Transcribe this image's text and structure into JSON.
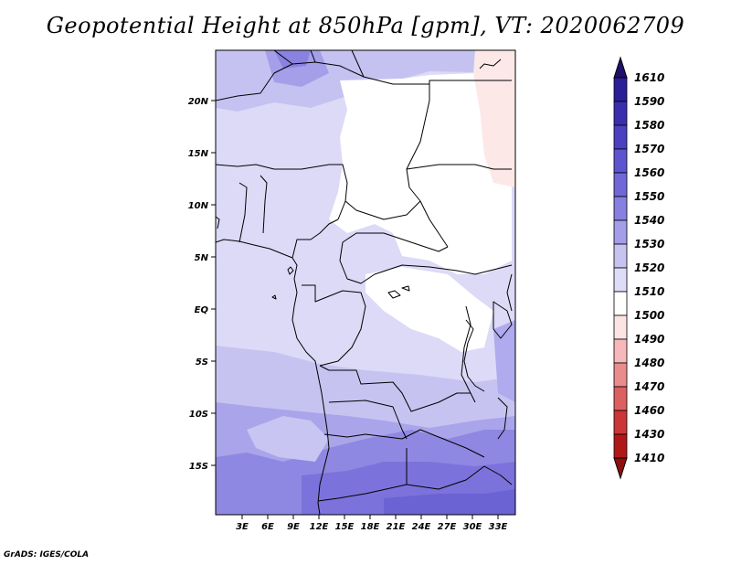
{
  "title": "Geopotential Height at 850hPa [gpm], VT: 2020062709",
  "credit": "GrADS: IGES/COLA",
  "lat_ticks": [
    "20N",
    "15N",
    "10N",
    "5N",
    "EQ",
    "5S",
    "10S",
    "15S"
  ],
  "lon_ticks": [
    "3E",
    "6E",
    "9E",
    "12E",
    "15E",
    "18E",
    "21E",
    "24E",
    "27E",
    "30E",
    "33E"
  ],
  "colorbar": {
    "labels": [
      "1610",
      "1590",
      "1580",
      "1570",
      "1560",
      "1550",
      "1540",
      "1530",
      "1520",
      "1510",
      "1500",
      "1490",
      "1480",
      "1470",
      "1460",
      "1430",
      "1410"
    ],
    "colors": [
      "#201068",
      "#2a1f96",
      "#3a2eae",
      "#4a40c0",
      "#5d55cf",
      "#7068d8",
      "#8880e0",
      "#a49ee8",
      "#c6c3f1",
      "#dedcf7",
      "#ffffff",
      "#fde4e4",
      "#f6b8b8",
      "#ea8c8c",
      "#dc6060",
      "#cc3636",
      "#b01818",
      "#8f0f0f"
    ]
  }
}
